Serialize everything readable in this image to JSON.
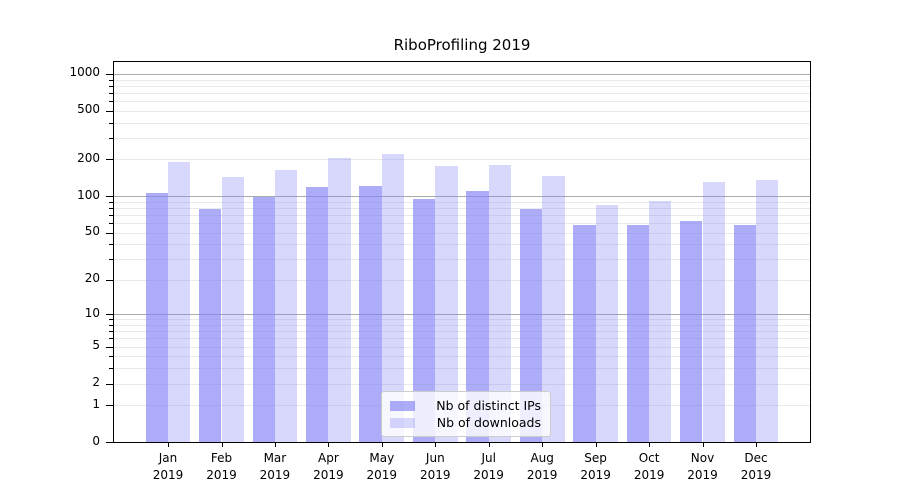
{
  "title": "RiboProfiling 2019",
  "colors": {
    "bar_base": "#7f7ff5",
    "distinct_ips_bar": "rgba(127,127,245,0.65)",
    "downloads_bar": "rgba(127,127,245,0.30)",
    "major_grid": "#ababab",
    "minor_grid": "#eaeaea",
    "spine": "#000000",
    "legend_border": "#cccccc"
  },
  "chart_data": {
    "type": "bar",
    "title": "RiboProfiling 2019",
    "categories": [
      "Jan 2019",
      "Feb 2019",
      "Mar 2019",
      "Apr 2019",
      "May 2019",
      "Jun 2019",
      "Jul 2019",
      "Aug 2019",
      "Sep 2019",
      "Oct 2019",
      "Nov 2019",
      "Dec 2019"
    ],
    "series": [
      {
        "name": "Nb of distinct IPs",
        "color": "rgba(127,127,245,0.65)",
        "values": [
          106,
          79,
          98,
          118,
          122,
          94,
          111,
          78,
          58,
          58,
          62,
          58
        ]
      },
      {
        "name": "Nb of downloads",
        "color": "rgba(127,127,245,0.30)",
        "values": [
          192,
          143,
          165,
          205,
          221,
          176,
          180,
          146,
          85,
          92,
          130,
          135
        ]
      }
    ],
    "xlabel": "",
    "ylabel": "",
    "yscale": "log1p",
    "yticks": [
      0,
      1,
      2,
      5,
      10,
      20,
      50,
      100,
      200,
      500,
      1000
    ],
    "ylim": [
      0,
      1250
    ],
    "grid": "horizontal major+minor",
    "legend_position": "lower center inside plot"
  }
}
